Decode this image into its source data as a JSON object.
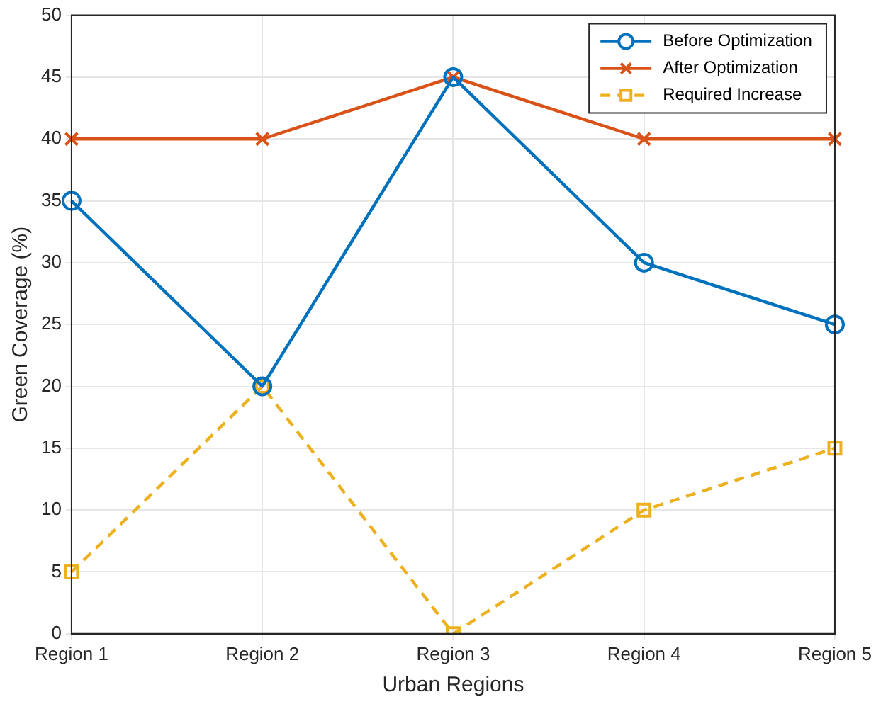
{
  "chart_data": {
    "type": "line",
    "xlabel": "Urban Regions",
    "ylabel": "Green Coverage (%)",
    "categories": [
      "Region 1",
      "Region 2",
      "Region 3",
      "Region 4",
      "Region 5"
    ],
    "series": [
      {
        "name": "Before Optimization",
        "color": "#0072bd",
        "values": [
          35,
          20,
          45,
          30,
          25
        ],
        "marker": "circle",
        "line_style": "solid"
      },
      {
        "name": "After Optimization",
        "color": "#d95319",
        "values": [
          40,
          40,
          45,
          40,
          40
        ],
        "marker": "cross",
        "line_style": "solid"
      },
      {
        "name": "Required Increase",
        "color": "#edb120",
        "values": [
          5,
          20,
          0,
          10,
          15
        ],
        "marker": "square",
        "line_style": "dashed"
      }
    ],
    "ylim": [
      0,
      50
    ],
    "yticks": [
      0,
      5,
      10,
      15,
      20,
      25,
      30,
      35,
      40,
      45,
      50
    ],
    "grid": true,
    "legend": "top right"
  }
}
